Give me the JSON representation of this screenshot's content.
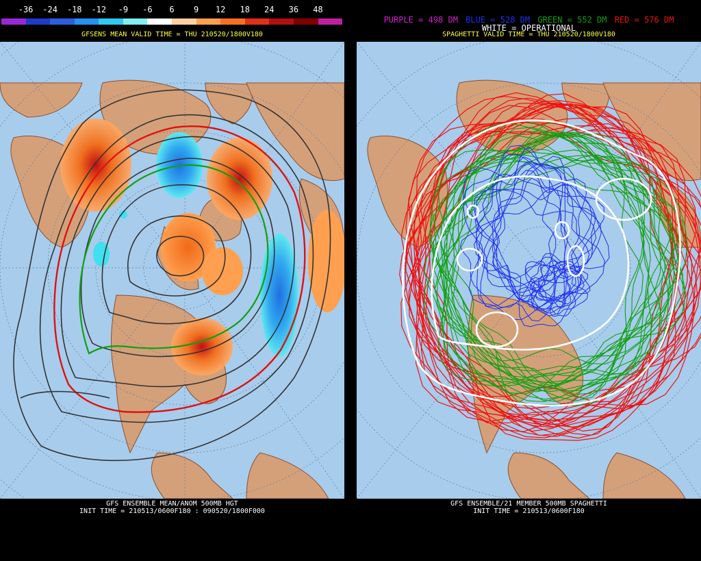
{
  "left": {
    "colorbar": {
      "labels": [
        "-36",
        "-24",
        "-18",
        "-12",
        "-9",
        "-6",
        "6",
        "9",
        "12",
        "18",
        "24",
        "36",
        "48"
      ],
      "colors": [
        "#9a28d8",
        "#1e3cc8",
        "#2860e0",
        "#2890f0",
        "#30c8f0",
        "#80f0f0",
        "#ffffff",
        "#ffd0a0",
        "#ffa050",
        "#f87020",
        "#e03018",
        "#b01010",
        "#800000",
        "#c020a0"
      ]
    },
    "title": "GFSENS MEAN VALID TIME = THU 210520/1800V180",
    "footer_line1": "GFS ENSEMBLE MEAN/ANOM 500MB HGT",
    "footer_line2": "INIT TIME = 210513/0600F180 : 090520/1800F000"
  },
  "right": {
    "legend": {
      "purple": "PURPLE = 498 DM",
      "blue": "BLUE = 528 DM",
      "green": "GREEN = 552 DM",
      "red": "RED = 576 DM",
      "white": "WHITE = OPERATIONAL"
    },
    "legend_colors": {
      "purple": "#d020d0",
      "blue": "#2030f0",
      "green": "#10a010",
      "red": "#f01010",
      "white": "#ffffff"
    },
    "title": "SPAGHETTI VALID TIME = THU 210520/1800V180",
    "footer_line1": "GFS ENSEMBLE/21 MEMBER 500MB SPAGHETTI",
    "footer_line2": "INIT TIME = 210513/0600F180"
  },
  "map_colors": {
    "ocean": "#a8ccec",
    "land": "#d4a07a",
    "border": "#8a5030",
    "grid": "#5a7ea0"
  }
}
